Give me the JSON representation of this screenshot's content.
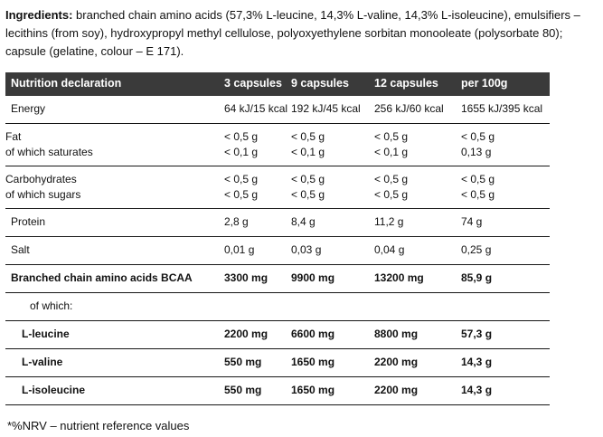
{
  "ingredients": {
    "label": "Ingredients:",
    "text": "branched chain amino acids (57,3% L-leucine, 14,3% L-valine, 14,3% L-isoleucine), emulsifiers – lecithins (from soy), hydroxypropyl methyl cellulose, polyoxyethylene sorbitan monooleate (polysorbate 80); capsule (gelatine, colour – E 171)."
  },
  "table": {
    "header": {
      "c0": "Nutrition declaration",
      "c1": "3 capsules",
      "c2": "9 capsules",
      "c3": "12 capsules",
      "c4": "per 100g"
    },
    "rows": [
      {
        "label": "Energy",
        "v1": "64 kJ/15 kcal",
        "v2": "192 kJ/45 kcal",
        "v3": "256 kJ/60 kcal",
        "v4": "1655 kJ/395 kcal"
      },
      {
        "label": "Fat",
        "v1": "< 0,5 g",
        "v2": "< 0,5 g",
        "v3": "< 0,5 g",
        "v4": "< 0,5 g"
      },
      {
        "label": "of which saturates",
        "v1": "< 0,1 g",
        "v2": "< 0,1 g",
        "v3": "< 0,1 g",
        "v4": "0,13 g"
      },
      {
        "label": "Carbohydrates",
        "v1": "< 0,5 g",
        "v2": "< 0,5 g",
        "v3": "< 0,5 g",
        "v4": "< 0,5 g"
      },
      {
        "label": "of which sugars",
        "v1": "< 0,5 g",
        "v2": "< 0,5 g",
        "v3": "< 0,5 g",
        "v4": "< 0,5 g"
      },
      {
        "label": "Protein",
        "v1": "2,8 g",
        "v2": "8,4 g",
        "v3": "11,2 g",
        "v4": "74 g"
      },
      {
        "label": "Salt",
        "v1": "0,01 g",
        "v2": "0,03 g",
        "v3": "0,04 g",
        "v4": "0,25 g"
      },
      {
        "label": "Branched chain amino acids BCAA",
        "v1": "3300 mg",
        "v2": "9900 mg",
        "v3": "13200 mg",
        "v4": "85,9 g"
      },
      {
        "label": "of which:",
        "v1": "",
        "v2": "",
        "v3": "",
        "v4": ""
      },
      {
        "label": "L-leucine",
        "v1": "2200 mg",
        "v2": "6600 mg",
        "v3": "8800 mg",
        "v4": "57,3 g"
      },
      {
        "label": "L-valine",
        "v1": "550 mg",
        "v2": "1650 mg",
        "v3": "2200 mg",
        "v4": "14,3 g"
      },
      {
        "label": "L-isoleucine",
        "v1": "550 mg",
        "v2": "1650 mg",
        "v3": "2200 mg",
        "v4": "14,3 g"
      }
    ]
  },
  "footnote": "*%NRV – nutrient reference values",
  "colors": {
    "header_bg": "#3a3a3a",
    "header_text": "#ffffff",
    "body_text": "#111111",
    "row_line": "#161616"
  }
}
